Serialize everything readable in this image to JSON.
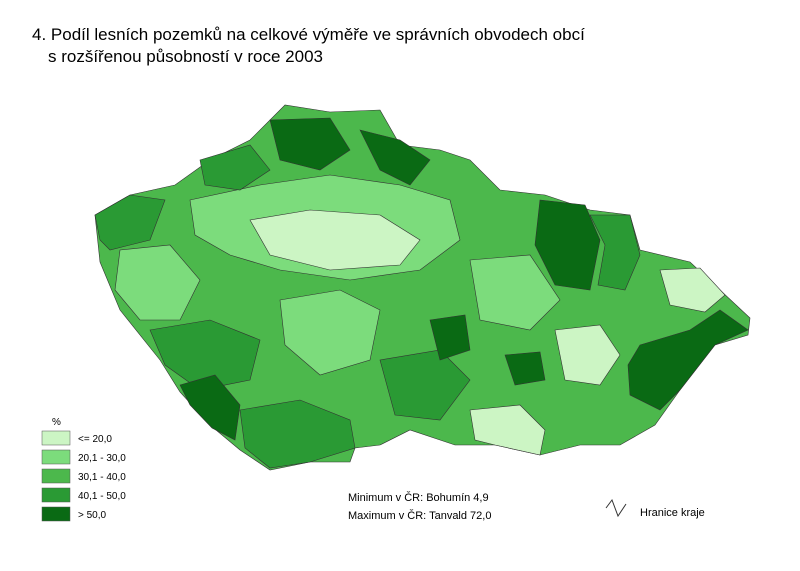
{
  "header": {
    "title_lines": [
      "4. Podíl lesních pozemků na celkové výměře ve správních obvodech obcí",
      "s rozšířenou působností v roce 2003"
    ]
  },
  "legend": {
    "unit": "%",
    "items": [
      {
        "label": "<= 20,0",
        "color": "#ccf5c4"
      },
      {
        "label": "20,1 - 30,0",
        "color": "#7cdc7c"
      },
      {
        "label": "30,1 - 40,0",
        "color": "#4cb84c"
      },
      {
        "label": "40,1 - 50,0",
        "color": "#2a9a34"
      },
      {
        "label": "> 50,0",
        "color": "#0a6a14"
      }
    ]
  },
  "notes": [
    "Minimum v ČR: Bohumín 4,9",
    "Maximum v ČR: Tanvald 72,0"
  ],
  "boundary_legend": "Hranice kraje"
}
